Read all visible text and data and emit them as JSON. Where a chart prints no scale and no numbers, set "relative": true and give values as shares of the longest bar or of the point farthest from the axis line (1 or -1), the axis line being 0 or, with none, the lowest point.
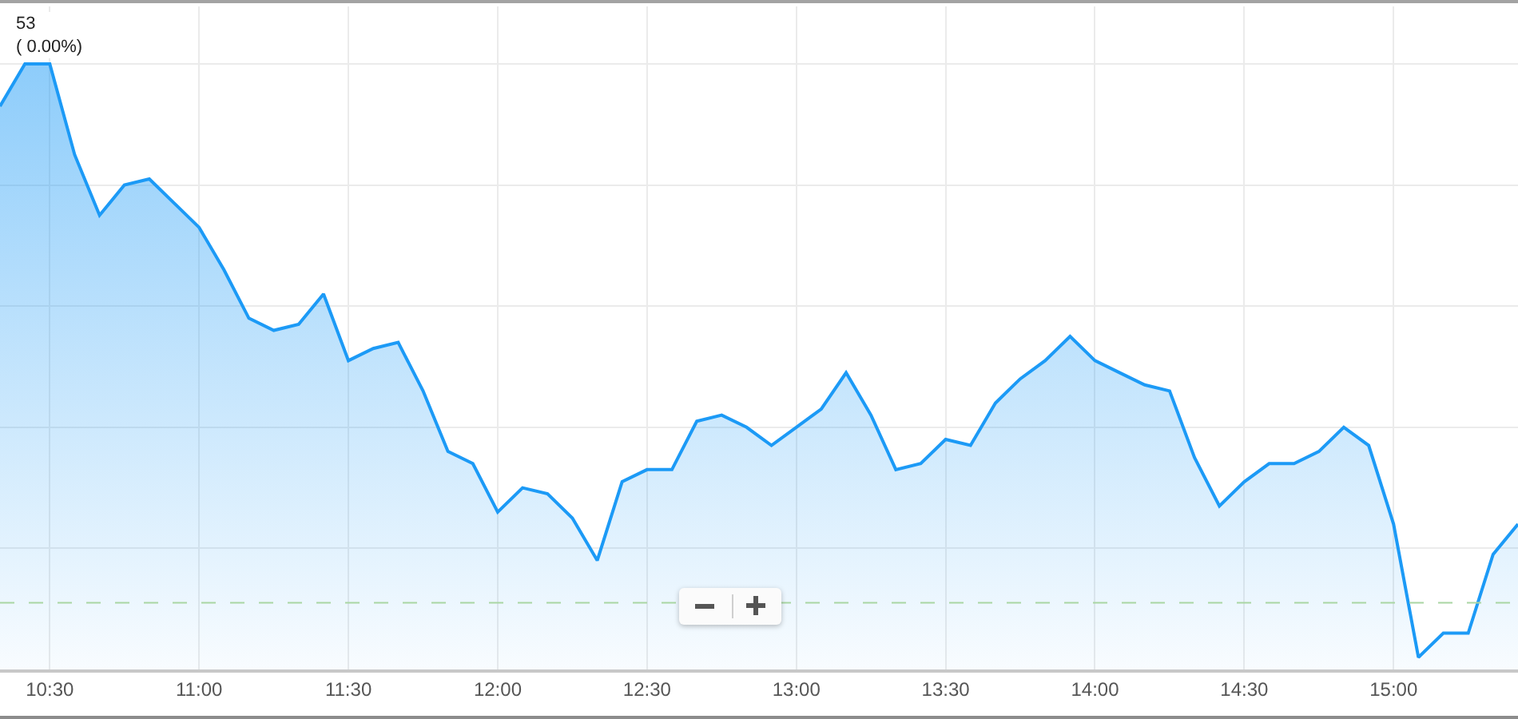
{
  "chart_data": {
    "type": "area",
    "x": [
      10.3333,
      10.4167,
      10.5,
      10.5833,
      10.6667,
      10.75,
      10.8333,
      10.9167,
      11,
      11.0833,
      11.1667,
      11.25,
      11.3333,
      11.4167,
      11.5,
      11.5833,
      11.6667,
      11.75,
      11.8333,
      11.9167,
      12,
      12.0833,
      12.1667,
      12.25,
      12.3333,
      12.4167,
      12.5,
      12.5833,
      12.6667,
      12.75,
      12.8333,
      12.9167,
      13,
      13.0833,
      13.1667,
      13.25,
      13.3333,
      13.4167,
      13.5,
      13.5833,
      13.6667,
      13.75,
      13.8333,
      13.9167,
      14,
      14.0833,
      14.1667,
      14.25,
      14.3333,
      14.4167,
      14.5,
      14.5833,
      14.6667,
      14.75,
      14.8333,
      14.9167,
      15,
      15.0833,
      15.1667,
      15.25,
      15.3333,
      15.4167
    ],
    "values": [
      0.93,
      1.0,
      1.0,
      0.85,
      0.75,
      0.8,
      0.81,
      0.77,
      0.73,
      0.66,
      0.58,
      0.56,
      0.57,
      0.62,
      0.51,
      0.53,
      0.54,
      0.46,
      0.36,
      0.34,
      0.26,
      0.3,
      0.29,
      0.25,
      0.18,
      0.31,
      0.33,
      0.33,
      0.41,
      0.42,
      0.4,
      0.37,
      0.4,
      0.43,
      0.49,
      0.42,
      0.33,
      0.34,
      0.38,
      0.37,
      0.44,
      0.48,
      0.51,
      0.55,
      0.51,
      0.49,
      0.47,
      0.46,
      0.35,
      0.27,
      0.31,
      0.34,
      0.34,
      0.36,
      0.4,
      0.37,
      0.24,
      0.02,
      0.06,
      0.06,
      0.19,
      0.24
    ],
    "color": "#1c9af6",
    "relative": true,
    "xlim": [
      10.3333,
      15.4167
    ],
    "xticks": [
      {
        "value": 10.5,
        "label": "10:30"
      },
      {
        "value": 11,
        "label": "11:00"
      },
      {
        "value": 11.5,
        "label": "11:30"
      },
      {
        "value": 12,
        "label": "12:00"
      },
      {
        "value": 12.5,
        "label": "12:30"
      },
      {
        "value": 13,
        "label": "13:00"
      },
      {
        "value": 13.5,
        "label": "13:30"
      },
      {
        "value": 14,
        "label": "14:00"
      },
      {
        "value": 14.5,
        "label": "14:30"
      },
      {
        "value": 15,
        "label": "15:00"
      }
    ],
    "grid": true,
    "ref_lines": [
      {
        "axis": "y",
        "value": 0.11,
        "color": "#a9d6a3",
        "line_style": "dashed"
      }
    ],
    "annotations": [
      {
        "text": "53\n( 0.00%)",
        "x": 10.5,
        "y": 1
      }
    ]
  }
}
